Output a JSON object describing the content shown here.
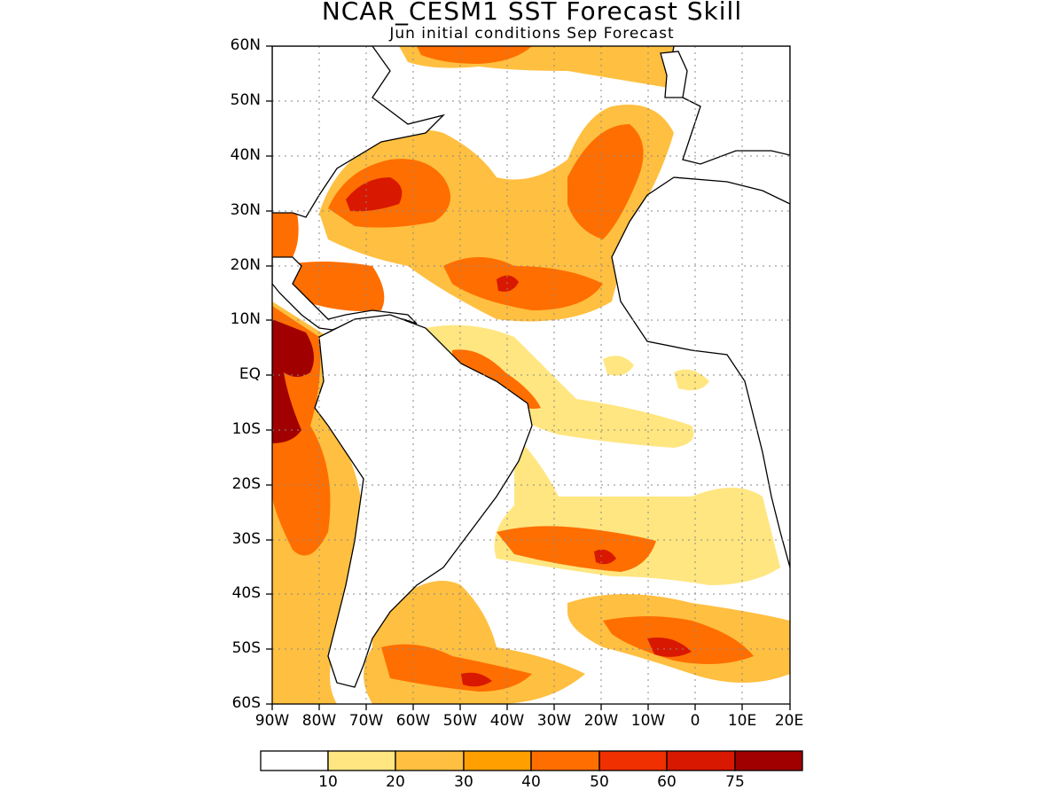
{
  "title": "NCAR_CESM1 SST Forecast Skill",
  "subtitle": "Jun initial conditions  Sep Forecast",
  "map": {
    "lon_range": [
      -90,
      20
    ],
    "lat_range": [
      -60,
      60
    ],
    "grid": "dotted",
    "y_ticks": [
      "60N",
      "50N",
      "40N",
      "30N",
      "20N",
      "10N",
      "EQ",
      "10S",
      "20S",
      "30S",
      "40S",
      "50S",
      "60S"
    ],
    "x_ticks": [
      "90W",
      "80W",
      "70W",
      "60W",
      "50W",
      "40W",
      "30W",
      "20W",
      "10W",
      "0",
      "10E",
      "20E"
    ]
  },
  "colorbar": {
    "levels": [
      "10",
      "20",
      "30",
      "40",
      "50",
      "60",
      "75"
    ],
    "colors": [
      "#ffffff",
      "#ffe680",
      "#ffbf40",
      "#ffa000",
      "#ff6e00",
      "#f03000",
      "#d81800",
      "#a00000"
    ]
  }
}
